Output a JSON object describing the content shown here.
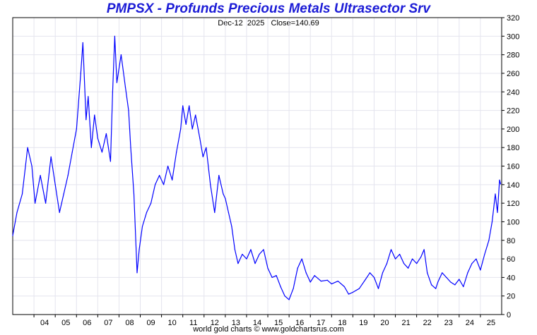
{
  "title": "PMPSX - Profunds Precious Metals Ultrasector Srv",
  "subtitle": "Dec-12  2025   Close=140.69",
  "footer": "world gold charts © www.goldchartsrus.com",
  "colors": {
    "title": "#1c1cd6",
    "line": "#0000ff",
    "grid": "#e4e4ee",
    "axis": "#000000"
  },
  "chart_data": {
    "type": "line",
    "title": "PMPSX - Profunds Precious Metals Ultrasector Srv",
    "annotation": "Dec-12  2025   Close=140.69",
    "xlabel": "",
    "ylabel": "",
    "ylim": [
      0,
      320
    ],
    "yticks": [
      0,
      20,
      40,
      60,
      80,
      100,
      120,
      140,
      160,
      180,
      200,
      220,
      240,
      260,
      280,
      300,
      320
    ],
    "xlim": [
      2003.0,
      2026.0
    ],
    "xticks": [
      {
        "x": 2004,
        "label": "04"
      },
      {
        "x": 2005,
        "label": "05"
      },
      {
        "x": 2006,
        "label": "06"
      },
      {
        "x": 2007,
        "label": "07"
      },
      {
        "x": 2008,
        "label": "08"
      },
      {
        "x": 2009,
        "label": "09"
      },
      {
        "x": 2010,
        "label": "10"
      },
      {
        "x": 2011,
        "label": "11"
      },
      {
        "x": 2012,
        "label": "12"
      },
      {
        "x": 2013,
        "label": "13"
      },
      {
        "x": 2014,
        "label": "14"
      },
      {
        "x": 2015,
        "label": "15"
      },
      {
        "x": 2016,
        "label": "16"
      },
      {
        "x": 2017,
        "label": "17"
      },
      {
        "x": 2018,
        "label": "18"
      },
      {
        "x": 2019,
        "label": "19"
      },
      {
        "x": 2020,
        "label": "20"
      },
      {
        "x": 2021,
        "label": "21"
      },
      {
        "x": 2022,
        "label": "22"
      },
      {
        "x": 2023,
        "label": "23"
      },
      {
        "x": 2024,
        "label": "24"
      },
      {
        "x": 2025,
        "label": "25"
      }
    ],
    "grid": true,
    "y_axis_position": "right",
    "series": [
      {
        "values": [
          [
            2003.0,
            85
          ],
          [
            2003.2,
            110
          ],
          [
            2003.45,
            130
          ],
          [
            2003.7,
            180
          ],
          [
            2003.9,
            160
          ],
          [
            2004.05,
            120
          ],
          [
            2004.3,
            150
          ],
          [
            2004.55,
            120
          ],
          [
            2004.8,
            170
          ],
          [
            2005.0,
            140
          ],
          [
            2005.2,
            110
          ],
          [
            2005.4,
            130
          ],
          [
            2005.6,
            150
          ],
          [
            2005.8,
            175
          ],
          [
            2006.0,
            200
          ],
          [
            2006.2,
            260
          ],
          [
            2006.3,
            293
          ],
          [
            2006.45,
            210
          ],
          [
            2006.55,
            235
          ],
          [
            2006.7,
            180
          ],
          [
            2006.85,
            215
          ],
          [
            2007.0,
            190
          ],
          [
            2007.2,
            175
          ],
          [
            2007.4,
            195
          ],
          [
            2007.6,
            165
          ],
          [
            2007.7,
            240
          ],
          [
            2007.8,
            300
          ],
          [
            2007.9,
            250
          ],
          [
            2008.1,
            280
          ],
          [
            2008.3,
            245
          ],
          [
            2008.45,
            220
          ],
          [
            2008.55,
            180
          ],
          [
            2008.7,
            130
          ],
          [
            2008.85,
            45
          ],
          [
            2008.95,
            70
          ],
          [
            2009.1,
            95
          ],
          [
            2009.3,
            110
          ],
          [
            2009.5,
            120
          ],
          [
            2009.7,
            140
          ],
          [
            2009.9,
            150
          ],
          [
            2010.1,
            140
          ],
          [
            2010.3,
            160
          ],
          [
            2010.5,
            145
          ],
          [
            2010.7,
            175
          ],
          [
            2010.9,
            200
          ],
          [
            2011.0,
            225
          ],
          [
            2011.15,
            205
          ],
          [
            2011.3,
            225
          ],
          [
            2011.45,
            200
          ],
          [
            2011.6,
            215
          ],
          [
            2011.8,
            190
          ],
          [
            2011.95,
            170
          ],
          [
            2012.1,
            180
          ],
          [
            2012.3,
            140
          ],
          [
            2012.5,
            110
          ],
          [
            2012.7,
            150
          ],
          [
            2012.9,
            130
          ],
          [
            2013.0,
            125
          ],
          [
            2013.15,
            110
          ],
          [
            2013.3,
            95
          ],
          [
            2013.45,
            70
          ],
          [
            2013.6,
            55
          ],
          [
            2013.8,
            65
          ],
          [
            2014.0,
            60
          ],
          [
            2014.2,
            70
          ],
          [
            2014.4,
            55
          ],
          [
            2014.6,
            65
          ],
          [
            2014.8,
            70
          ],
          [
            2015.0,
            50
          ],
          [
            2015.2,
            40
          ],
          [
            2015.4,
            42
          ],
          [
            2015.6,
            30
          ],
          [
            2015.8,
            20
          ],
          [
            2016.0,
            16
          ],
          [
            2016.2,
            28
          ],
          [
            2016.4,
            50
          ],
          [
            2016.6,
            60
          ],
          [
            2016.8,
            45
          ],
          [
            2017.0,
            35
          ],
          [
            2017.2,
            42
          ],
          [
            2017.5,
            36
          ],
          [
            2017.8,
            37
          ],
          [
            2018.0,
            33
          ],
          [
            2018.3,
            36
          ],
          [
            2018.6,
            30
          ],
          [
            2018.8,
            22
          ],
          [
            2019.0,
            24
          ],
          [
            2019.3,
            28
          ],
          [
            2019.6,
            38
          ],
          [
            2019.8,
            45
          ],
          [
            2020.0,
            40
          ],
          [
            2020.2,
            28
          ],
          [
            2020.4,
            45
          ],
          [
            2020.6,
            55
          ],
          [
            2020.8,
            70
          ],
          [
            2021.0,
            60
          ],
          [
            2021.2,
            65
          ],
          [
            2021.4,
            55
          ],
          [
            2021.6,
            50
          ],
          [
            2021.8,
            60
          ],
          [
            2022.0,
            55
          ],
          [
            2022.2,
            62
          ],
          [
            2022.35,
            70
          ],
          [
            2022.5,
            45
          ],
          [
            2022.7,
            32
          ],
          [
            2022.9,
            28
          ],
          [
            2023.0,
            35
          ],
          [
            2023.2,
            45
          ],
          [
            2023.4,
            40
          ],
          [
            2023.6,
            35
          ],
          [
            2023.8,
            32
          ],
          [
            2024.0,
            38
          ],
          [
            2024.2,
            30
          ],
          [
            2024.4,
            45
          ],
          [
            2024.6,
            55
          ],
          [
            2024.8,
            60
          ],
          [
            2025.0,
            48
          ],
          [
            2025.2,
            65
          ],
          [
            2025.4,
            80
          ],
          [
            2025.55,
            100
          ],
          [
            2025.7,
            130
          ],
          [
            2025.8,
            110
          ],
          [
            2025.9,
            145
          ],
          [
            2025.95,
            140.69
          ]
        ]
      }
    ]
  }
}
